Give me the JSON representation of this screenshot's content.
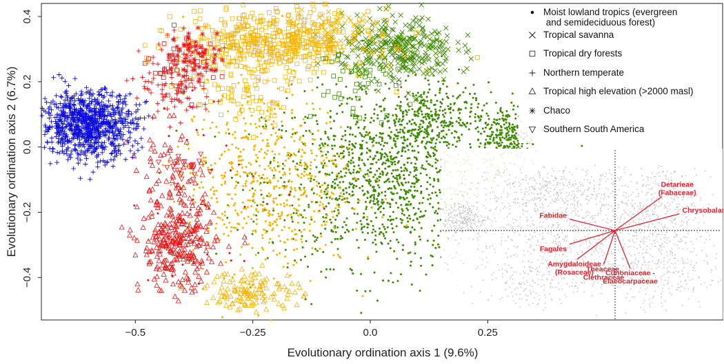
{
  "chart_data": {
    "type": "scatter",
    "xlabel": "Evolutionary ordination axis 1 (9.6%)",
    "ylabel": "Evolutionary ordination axis 2 (6.7%)",
    "xlim": [
      -0.7,
      0.75
    ],
    "ylim": [
      -0.53,
      0.44
    ],
    "x_ticks": [
      -0.5,
      -0.25,
      0.0,
      0.25
    ],
    "x_tick_labels": [
      "−0.5",
      "−0.25",
      "0.0",
      "0.25"
    ],
    "y_ticks": [
      -0.4,
      -0.2,
      0.0,
      0.2,
      0.4
    ],
    "y_tick_labels": [
      "−0.4",
      "−0.2",
      "0.0",
      "0.2",
      "0.4"
    ],
    "grid": false,
    "legend_position": "top-right",
    "legend": [
      {
        "label_lines": [
          "Moist lowland tropics (evergreen",
          " and semideciduous forest)"
        ],
        "marker": "dot"
      },
      {
        "label_lines": [
          "Tropical savanna"
        ],
        "marker": "x"
      },
      {
        "label_lines": [
          "Tropical dry forests"
        ],
        "marker": "square"
      },
      {
        "label_lines": [
          "Northern temperate"
        ],
        "marker": "plus"
      },
      {
        "label_lines": [
          "Tropical high elevation (>2000 masl)"
        ],
        "marker": "triangle-up"
      },
      {
        "label_lines": [
          "Chaco"
        ],
        "marker": "asterisk"
      },
      {
        "label_lines": [
          "Southern South America"
        ],
        "marker": "triangle-down"
      }
    ],
    "colors": {
      "green": "#3f8c00",
      "gold": "#f5b400",
      "red": "#f01010",
      "blue": "#0a0ae0",
      "inset_grey": "#c4c4c4",
      "inset_red": "#e8202a"
    },
    "clusters": [
      {
        "marker": "dot",
        "color": "green",
        "cx": 0.04,
        "cy": -0.1,
        "sx": 0.13,
        "sy": 0.13,
        "n": 1300
      },
      {
        "marker": "dot",
        "color": "green",
        "cx": 0.12,
        "cy": 0.09,
        "sx": 0.05,
        "sy": 0.05,
        "n": 280
      },
      {
        "marker": "dot",
        "color": "green",
        "cx": 0.29,
        "cy": 0.03,
        "sx": 0.025,
        "sy": 0.05,
        "n": 230
      },
      {
        "marker": "dot",
        "color": "gold",
        "cx": -0.22,
        "cy": -0.1,
        "sx": 0.09,
        "sy": 0.14,
        "n": 650
      },
      {
        "marker": "dot",
        "color": "red",
        "cx": -0.33,
        "cy": -0.15,
        "sx": 0.09,
        "sy": 0.15,
        "n": 35
      },
      {
        "marker": "x",
        "color": "green",
        "cx": 0.06,
        "cy": 0.3,
        "sx": 0.06,
        "sy": 0.05,
        "n": 340
      },
      {
        "marker": "x",
        "color": "gold",
        "cx": -0.07,
        "cy": 0.36,
        "sx": 0.06,
        "sy": 0.03,
        "n": 60
      },
      {
        "marker": "square",
        "color": "gold",
        "cx": -0.2,
        "cy": 0.32,
        "sx": 0.1,
        "sy": 0.05,
        "n": 520
      },
      {
        "marker": "square",
        "color": "gold",
        "cx": -0.27,
        "cy": 0.15,
        "sx": 0.05,
        "sy": 0.05,
        "n": 60
      },
      {
        "marker": "square",
        "color": "green",
        "cx": -0.03,
        "cy": 0.2,
        "sx": 0.05,
        "sy": 0.06,
        "n": 45
      },
      {
        "marker": "square",
        "color": "red",
        "cx": -0.4,
        "cy": 0.25,
        "sx": 0.035,
        "sy": 0.05,
        "n": 40
      },
      {
        "marker": "plus",
        "color": "blue",
        "cx": -0.6,
        "cy": 0.07,
        "sx": 0.05,
        "sy": 0.05,
        "n": 900
      },
      {
        "marker": "plus",
        "color": "red",
        "cx": -0.41,
        "cy": 0.2,
        "sx": 0.04,
        "sy": 0.06,
        "n": 120
      },
      {
        "marker": "plus",
        "color": "gold",
        "cx": -0.29,
        "cy": 0.3,
        "sx": 0.04,
        "sy": 0.04,
        "n": 40
      },
      {
        "marker": "triangle-up",
        "color": "red",
        "cx": -0.41,
        "cy": -0.3,
        "sx": 0.04,
        "sy": 0.07,
        "n": 280
      },
      {
        "marker": "triangle-up",
        "color": "red",
        "cx": -0.43,
        "cy": -0.12,
        "sx": 0.04,
        "sy": 0.09,
        "n": 70
      },
      {
        "marker": "triangle-up",
        "color": "gold",
        "cx": -0.25,
        "cy": -0.44,
        "sx": 0.05,
        "sy": 0.03,
        "n": 130
      },
      {
        "marker": "asterisk",
        "color": "red",
        "cx": -0.37,
        "cy": 0.28,
        "sx": 0.03,
        "sy": 0.04,
        "n": 60
      },
      {
        "marker": "triangle-down",
        "color": "red",
        "cx": -0.39,
        "cy": -0.07,
        "sx": 0.02,
        "sy": 0.02,
        "n": 25
      }
    ],
    "inset": {
      "type": "biplot",
      "vectors": [
        {
          "label_lines": [
            "Detarieae",
            "(Fabaceae)"
          ],
          "dx": 0.62,
          "dy": 0.45
        },
        {
          "label_lines": [
            "Chrysobalanaceae"
          ],
          "dx": 0.85,
          "dy": 0.22
        },
        {
          "label_lines": [
            "Fabidae"
          ],
          "dx": -0.6,
          "dy": 0.15
        },
        {
          "label_lines": [
            "Fagales"
          ],
          "dx": -0.6,
          "dy": -0.18
        },
        {
          "label_lines": [
            "Amygdaloideae",
            "(Rosaceae)"
          ],
          "dx": -0.5,
          "dy": -0.38
        },
        {
          "label_lines": [
            "Theaceae,",
            "Clethraceae"
          ],
          "dx": -0.15,
          "dy": -0.45
        },
        {
          "label_lines": [
            "Cunoniaceae -",
            "Elaeocarpaceae"
          ],
          "dx": 0.2,
          "dy": -0.5
        }
      ]
    }
  }
}
